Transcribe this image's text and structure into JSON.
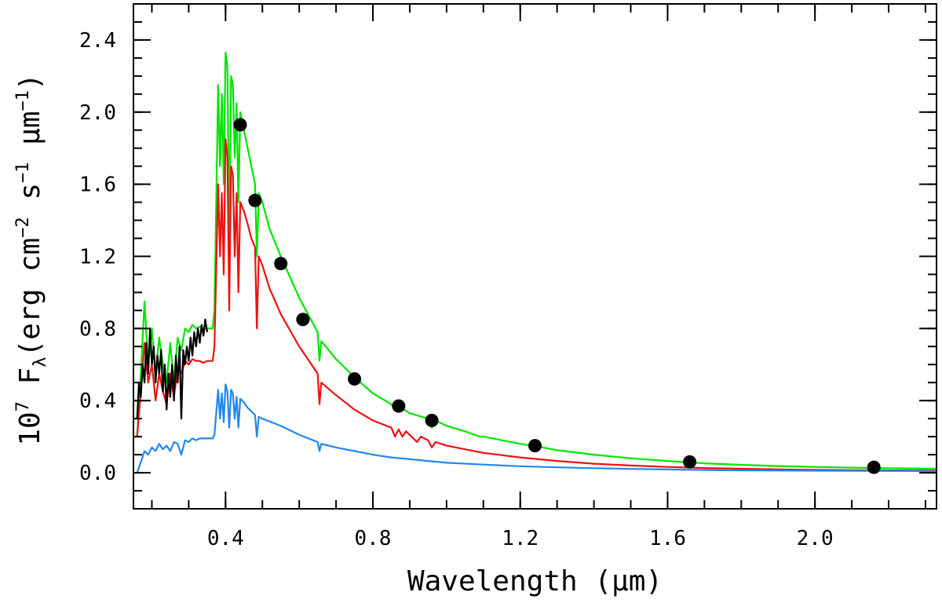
{
  "chart_data": {
    "type": "line",
    "xlabel": "Wavelength (μm)",
    "ylabel_parts": [
      "10",
      "7",
      " F",
      "λ",
      "(erg cm",
      "−2",
      " s",
      "−1",
      " μm",
      "−1",
      ")"
    ],
    "xlim": [
      0.15,
      2.33
    ],
    "ylim": [
      -0.2,
      2.6
    ],
    "x_ticks": [
      {
        "value": 0.4,
        "label": "0.4"
      },
      {
        "value": 0.8,
        "label": "0.8"
      },
      {
        "value": 1.2,
        "label": "1.2"
      },
      {
        "value": 1.6,
        "label": "1.6"
      },
      {
        "value": 2.0,
        "label": "2.0"
      }
    ],
    "x_minor_step": 0.1,
    "y_ticks": [
      {
        "value": 0.0,
        "label": "0.0"
      },
      {
        "value": 0.4,
        "label": "0.4"
      },
      {
        "value": 0.8,
        "label": "0.8"
      },
      {
        "value": 1.2,
        "label": "1.2"
      },
      {
        "value": 1.6,
        "label": "1.6"
      },
      {
        "value": 2.0,
        "label": "2.0"
      },
      {
        "value": 2.4,
        "label": "2.4"
      }
    ],
    "y_minor_step": 0.1,
    "grid": false,
    "series": [
      {
        "color": "#00e600",
        "points": [
          [
            0.16,
            0.2
          ],
          [
            0.17,
            0.55
          ],
          [
            0.18,
            0.95
          ],
          [
            0.19,
            0.6
          ],
          [
            0.2,
            0.8
          ],
          [
            0.21,
            0.55
          ],
          [
            0.22,
            0.75
          ],
          [
            0.23,
            0.6
          ],
          [
            0.24,
            0.5
          ],
          [
            0.25,
            0.72
          ],
          [
            0.26,
            0.5
          ],
          [
            0.27,
            0.75
          ],
          [
            0.28,
            0.68
          ],
          [
            0.29,
            0.8
          ],
          [
            0.3,
            0.78
          ],
          [
            0.31,
            0.82
          ],
          [
            0.32,
            0.8
          ],
          [
            0.33,
            0.81
          ],
          [
            0.34,
            0.8
          ],
          [
            0.35,
            0.8
          ],
          [
            0.365,
            0.8
          ],
          [
            0.37,
            0.9
          ],
          [
            0.38,
            2.15
          ],
          [
            0.385,
            1.7
          ],
          [
            0.39,
            2.1
          ],
          [
            0.395,
            1.6
          ],
          [
            0.4,
            2.33
          ],
          [
            0.405,
            2.25
          ],
          [
            0.41,
            1.3
          ],
          [
            0.415,
            2.2
          ],
          [
            0.42,
            2.15
          ],
          [
            0.425,
            1.75
          ],
          [
            0.43,
            2.05
          ],
          [
            0.435,
            1.5
          ],
          [
            0.44,
            2.0
          ],
          [
            0.45,
            1.9
          ],
          [
            0.46,
            1.8
          ],
          [
            0.47,
            1.7
          ],
          [
            0.48,
            1.6
          ],
          [
            0.485,
            1.2
          ],
          [
            0.49,
            1.55
          ],
          [
            0.5,
            1.5
          ],
          [
            0.52,
            1.35
          ],
          [
            0.55,
            1.2
          ],
          [
            0.6,
            0.97
          ],
          [
            0.65,
            0.78
          ],
          [
            0.655,
            0.62
          ],
          [
            0.66,
            0.73
          ],
          [
            0.7,
            0.63
          ],
          [
            0.75,
            0.53
          ],
          [
            0.8,
            0.44
          ],
          [
            0.85,
            0.38
          ],
          [
            0.86,
            0.35
          ],
          [
            0.87,
            0.37
          ],
          [
            0.9,
            0.33
          ],
          [
            0.95,
            0.3
          ],
          [
            0.96,
            0.25
          ],
          [
            0.97,
            0.29
          ],
          [
            1.0,
            0.26
          ],
          [
            1.05,
            0.23
          ],
          [
            1.09,
            0.2
          ],
          [
            1.1,
            0.2
          ],
          [
            1.2,
            0.16
          ],
          [
            1.25,
            0.145
          ],
          [
            1.3,
            0.125
          ],
          [
            1.4,
            0.1
          ],
          [
            1.5,
            0.08
          ],
          [
            1.6,
            0.065
          ],
          [
            1.7,
            0.052
          ],
          [
            1.8,
            0.044
          ],
          [
            1.9,
            0.037
          ],
          [
            2.0,
            0.032
          ],
          [
            2.1,
            0.028
          ],
          [
            2.2,
            0.025
          ],
          [
            2.33,
            0.022
          ]
        ]
      },
      {
        "color": "#ee1111",
        "points": [
          [
            0.16,
            0.2
          ],
          [
            0.17,
            0.45
          ],
          [
            0.18,
            0.72
          ],
          [
            0.19,
            0.5
          ],
          [
            0.2,
            0.6
          ],
          [
            0.21,
            0.4
          ],
          [
            0.22,
            0.55
          ],
          [
            0.23,
            0.45
          ],
          [
            0.24,
            0.38
          ],
          [
            0.25,
            0.55
          ],
          [
            0.26,
            0.42
          ],
          [
            0.27,
            0.58
          ],
          [
            0.28,
            0.55
          ],
          [
            0.29,
            0.62
          ],
          [
            0.3,
            0.6
          ],
          [
            0.31,
            0.63
          ],
          [
            0.32,
            0.62
          ],
          [
            0.33,
            0.62
          ],
          [
            0.34,
            0.61
          ],
          [
            0.35,
            0.62
          ],
          [
            0.365,
            0.62
          ],
          [
            0.37,
            0.7
          ],
          [
            0.38,
            1.6
          ],
          [
            0.385,
            1.2
          ],
          [
            0.39,
            1.55
          ],
          [
            0.395,
            1.1
          ],
          [
            0.4,
            1.85
          ],
          [
            0.405,
            1.75
          ],
          [
            0.41,
            0.9
          ],
          [
            0.415,
            1.7
          ],
          [
            0.42,
            1.65
          ],
          [
            0.425,
            1.2
          ],
          [
            0.43,
            1.55
          ],
          [
            0.435,
            1.0
          ],
          [
            0.44,
            1.5
          ],
          [
            0.45,
            1.45
          ],
          [
            0.46,
            1.38
          ],
          [
            0.47,
            1.3
          ],
          [
            0.48,
            1.25
          ],
          [
            0.485,
            0.8
          ],
          [
            0.49,
            1.2
          ],
          [
            0.5,
            1.15
          ],
          [
            0.52,
            1.02
          ],
          [
            0.55,
            0.88
          ],
          [
            0.6,
            0.7
          ],
          [
            0.65,
            0.55
          ],
          [
            0.655,
            0.38
          ],
          [
            0.66,
            0.5
          ],
          [
            0.7,
            0.43
          ],
          [
            0.75,
            0.35
          ],
          [
            0.8,
            0.29
          ],
          [
            0.85,
            0.25
          ],
          [
            0.86,
            0.2
          ],
          [
            0.87,
            0.24
          ],
          [
            0.88,
            0.2
          ],
          [
            0.89,
            0.23
          ],
          [
            0.9,
            0.21
          ],
          [
            0.92,
            0.17
          ],
          [
            0.93,
            0.2
          ],
          [
            0.95,
            0.18
          ],
          [
            0.96,
            0.14
          ],
          [
            0.97,
            0.17
          ],
          [
            1.0,
            0.15
          ],
          [
            1.05,
            0.13
          ],
          [
            1.1,
            0.11
          ],
          [
            1.2,
            0.085
          ],
          [
            1.3,
            0.065
          ],
          [
            1.4,
            0.05
          ],
          [
            1.5,
            0.04
          ],
          [
            1.6,
            0.032
          ],
          [
            1.7,
            0.026
          ],
          [
            1.8,
            0.022
          ],
          [
            1.9,
            0.018
          ],
          [
            2.0,
            0.016
          ],
          [
            2.1,
            0.014
          ],
          [
            2.2,
            0.013
          ],
          [
            2.33,
            0.012
          ]
        ]
      },
      {
        "color": "#2288ee",
        "points": [
          [
            0.16,
            0.0
          ],
          [
            0.17,
            0.06
          ],
          [
            0.18,
            0.12
          ],
          [
            0.19,
            0.1
          ],
          [
            0.2,
            0.14
          ],
          [
            0.21,
            0.12
          ],
          [
            0.22,
            0.16
          ],
          [
            0.23,
            0.13
          ],
          [
            0.24,
            0.15
          ],
          [
            0.25,
            0.12
          ],
          [
            0.26,
            0.17
          ],
          [
            0.27,
            0.16
          ],
          [
            0.28,
            0.1
          ],
          [
            0.29,
            0.18
          ],
          [
            0.3,
            0.17
          ],
          [
            0.31,
            0.19
          ],
          [
            0.32,
            0.18
          ],
          [
            0.33,
            0.19
          ],
          [
            0.34,
            0.19
          ],
          [
            0.35,
            0.19
          ],
          [
            0.365,
            0.19
          ],
          [
            0.37,
            0.21
          ],
          [
            0.38,
            0.46
          ],
          [
            0.385,
            0.3
          ],
          [
            0.39,
            0.44
          ],
          [
            0.395,
            0.28
          ],
          [
            0.4,
            0.49
          ],
          [
            0.405,
            0.45
          ],
          [
            0.41,
            0.25
          ],
          [
            0.415,
            0.46
          ],
          [
            0.42,
            0.44
          ],
          [
            0.425,
            0.3
          ],
          [
            0.43,
            0.42
          ],
          [
            0.435,
            0.25
          ],
          [
            0.44,
            0.41
          ],
          [
            0.45,
            0.39
          ],
          [
            0.46,
            0.36
          ],
          [
            0.47,
            0.34
          ],
          [
            0.48,
            0.32
          ],
          [
            0.485,
            0.2
          ],
          [
            0.49,
            0.31
          ],
          [
            0.5,
            0.3
          ],
          [
            0.55,
            0.26
          ],
          [
            0.6,
            0.21
          ],
          [
            0.65,
            0.17
          ],
          [
            0.655,
            0.12
          ],
          [
            0.66,
            0.16
          ],
          [
            0.7,
            0.14
          ],
          [
            0.75,
            0.12
          ],
          [
            0.8,
            0.1
          ],
          [
            0.85,
            0.085
          ],
          [
            0.9,
            0.075
          ],
          [
            0.95,
            0.065
          ],
          [
            1.0,
            0.055
          ],
          [
            1.1,
            0.045
          ],
          [
            1.2,
            0.036
          ],
          [
            1.3,
            0.03
          ],
          [
            1.4,
            0.025
          ],
          [
            1.5,
            0.021
          ],
          [
            1.6,
            0.018
          ],
          [
            1.7,
            0.015
          ],
          [
            1.8,
            0.013
          ],
          [
            1.9,
            0.012
          ],
          [
            2.0,
            0.011
          ],
          [
            2.2,
            0.01
          ],
          [
            2.33,
            0.009
          ]
        ]
      },
      {
        "color": "#000000",
        "points": [
          [
            0.16,
            0.3
          ],
          [
            0.165,
            0.5
          ],
          [
            0.17,
            0.42
          ],
          [
            0.175,
            0.6
          ],
          [
            0.18,
            0.5
          ],
          [
            0.185,
            0.72
          ],
          [
            0.19,
            0.55
          ],
          [
            0.195,
            0.8
          ],
          [
            0.2,
            0.6
          ],
          [
            0.205,
            0.7
          ],
          [
            0.21,
            0.5
          ],
          [
            0.215,
            0.65
          ],
          [
            0.22,
            0.55
          ],
          [
            0.225,
            0.68
          ],
          [
            0.23,
            0.45
          ],
          [
            0.235,
            0.6
          ],
          [
            0.24,
            0.35
          ],
          [
            0.245,
            0.55
          ],
          [
            0.25,
            0.42
          ],
          [
            0.255,
            0.6
          ],
          [
            0.26,
            0.4
          ],
          [
            0.265,
            0.65
          ],
          [
            0.27,
            0.5
          ],
          [
            0.275,
            0.7
          ],
          [
            0.28,
            0.3
          ],
          [
            0.285,
            0.68
          ],
          [
            0.29,
            0.6
          ],
          [
            0.295,
            0.7
          ],
          [
            0.3,
            0.62
          ],
          [
            0.305,
            0.75
          ],
          [
            0.31,
            0.65
          ],
          [
            0.315,
            0.78
          ],
          [
            0.32,
            0.7
          ],
          [
            0.325,
            0.8
          ],
          [
            0.33,
            0.72
          ],
          [
            0.335,
            0.82
          ],
          [
            0.34,
            0.76
          ],
          [
            0.345,
            0.85
          ],
          [
            0.35,
            0.78
          ]
        ]
      }
    ],
    "points": [
      {
        "x": 0.44,
        "y": 1.93
      },
      {
        "x": 0.48,
        "y": 1.51
      },
      {
        "x": 0.55,
        "y": 1.16
      },
      {
        "x": 0.61,
        "y": 0.85
      },
      {
        "x": 0.75,
        "y": 0.52
      },
      {
        "x": 0.87,
        "y": 0.37
      },
      {
        "x": 0.96,
        "y": 0.29
      },
      {
        "x": 1.24,
        "y": 0.15
      },
      {
        "x": 1.66,
        "y": 0.06
      },
      {
        "x": 2.16,
        "y": 0.03
      }
    ],
    "point_color": "#000000"
  }
}
